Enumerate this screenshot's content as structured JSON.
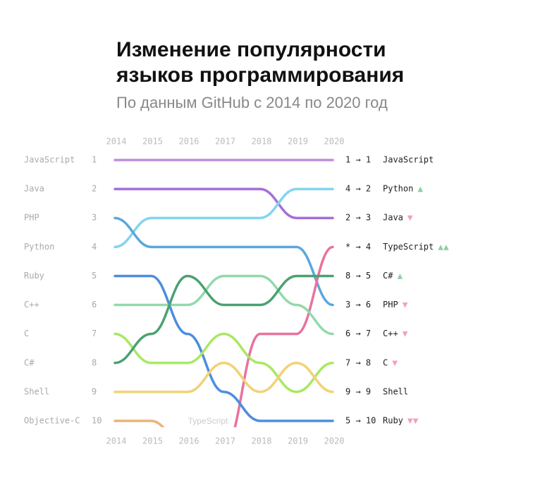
{
  "chart_data": {
    "type": "bump",
    "title": [
      "Изменение популярности",
      "языков программирования"
    ],
    "subtitle": "По данным GitHub с 2014 по 2020 год",
    "categories": [
      "2014",
      "2015",
      "2016",
      "2017",
      "2018",
      "2019",
      "2020"
    ],
    "ylim": [
      1,
      10
    ],
    "yticks": [
      1,
      2,
      3,
      4,
      5,
      6,
      7,
      8,
      9,
      10
    ],
    "left_labels": [
      "JavaScript",
      "Java",
      "PHP",
      "Python",
      "Ruby",
      "C++",
      "C",
      "C#",
      "Shell",
      "Objective-C"
    ],
    "annotation": "TypeScript",
    "series": [
      {
        "name": "JavaScript",
        "color": "#c08fdc",
        "values": [
          1,
          1,
          1,
          1,
          1,
          1,
          1
        ]
      },
      {
        "name": "Java",
        "color": "#a56fd6",
        "values": [
          2,
          2,
          2,
          2,
          2,
          3,
          3
        ]
      },
      {
        "name": "Python",
        "color": "#84d4ef",
        "values": [
          4,
          3,
          3,
          3,
          3,
          2,
          2
        ]
      },
      {
        "name": "PHP",
        "color": "#5aa7dd",
        "values": [
          3,
          4,
          4,
          4,
          4,
          4,
          6
        ]
      },
      {
        "name": "TypeScript",
        "color": "#e8729e",
        "values": [
          null,
          null,
          null,
          11,
          7,
          7,
          4
        ]
      },
      {
        "name": "Ruby",
        "color": "#4d8ddf",
        "values": [
          5,
          5,
          7,
          9,
          10,
          10,
          10
        ]
      },
      {
        "name": "C++",
        "color": "#93d9ab",
        "values": [
          6,
          6,
          6,
          5,
          5,
          6,
          7
        ]
      },
      {
        "name": "C",
        "color": "#a9e863",
        "values": [
          7,
          8,
          8,
          7,
          8,
          9,
          8
        ]
      },
      {
        "name": "C#",
        "color": "#4aa172",
        "values": [
          8,
          7,
          5,
          6,
          6,
          5,
          5
        ]
      },
      {
        "name": "Shell",
        "color": "#f1d277",
        "values": [
          9,
          9,
          9,
          8,
          9,
          8,
          9
        ]
      },
      {
        "name": "Objective-C",
        "color": "#e9b478",
        "values": [
          10,
          10,
          11,
          null,
          null,
          null,
          null
        ]
      }
    ],
    "right_rows": [
      {
        "change": "1 → 1",
        "name": "JavaScript",
        "trend": ""
      },
      {
        "change": "4 → 2",
        "name": "Python",
        "trend": "▲"
      },
      {
        "change": "2 → 3",
        "name": "Java",
        "trend": "▼"
      },
      {
        "change": "* → 4",
        "name": "TypeScript",
        "trend": "▲▲"
      },
      {
        "change": "8 → 5",
        "name": "C#",
        "trend": "▲"
      },
      {
        "change": "3 → 6",
        "name": "PHP",
        "trend": "▼"
      },
      {
        "change": "6 → 7",
        "name": "C++",
        "trend": "▼"
      },
      {
        "change": "7 → 8",
        "name": "C",
        "trend": "▼"
      },
      {
        "change": "9 → 9",
        "name": "Shell",
        "trend": ""
      },
      {
        "change": "5 → 10",
        "name": "Ruby",
        "trend": "▼▼"
      }
    ],
    "trend_colors": {
      "▲": "#8fd0a3",
      "▼": "#f2a0bb"
    }
  }
}
